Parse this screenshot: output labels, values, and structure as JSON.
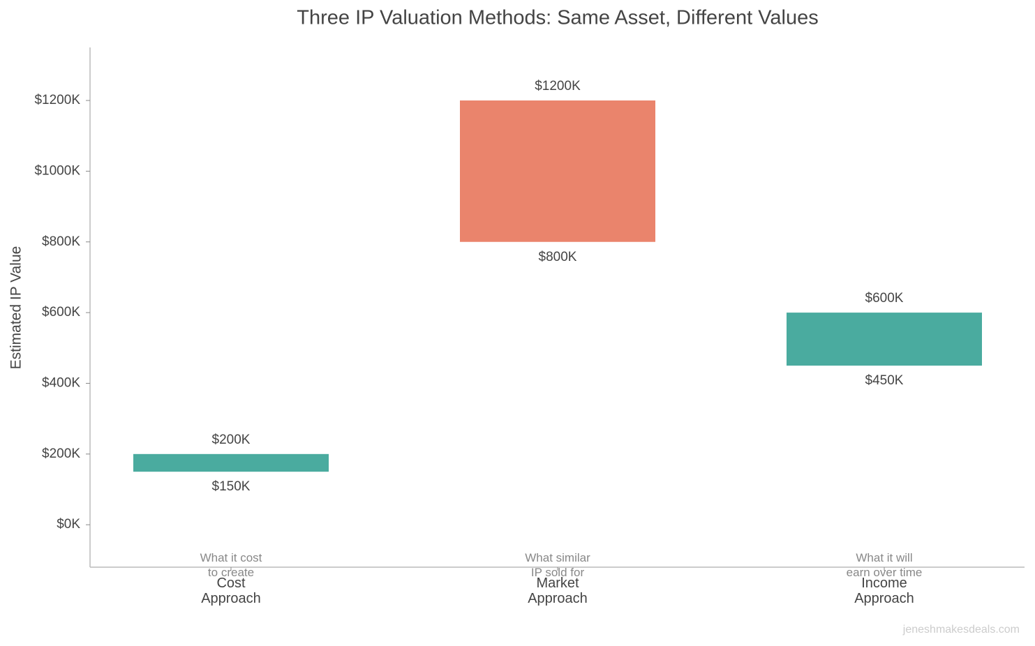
{
  "chart_data": {
    "type": "range_bar",
    "title": "Three IP Valuation Methods: Same Asset, Different Values",
    "y_label": "Estimated IP Value",
    "categories": [
      [
        "Cost",
        "Approach"
      ],
      [
        "Market",
        "Approach"
      ],
      [
        "Income",
        "Approach"
      ]
    ],
    "notes": [
      [
        "What it cost",
        "to create"
      ],
      [
        "What similar",
        "IP sold for"
      ],
      [
        "What it will",
        "earn over time"
      ]
    ],
    "values": [
      [
        150,
        200
      ],
      [
        800,
        1200
      ],
      [
        450,
        600
      ]
    ],
    "value_labels": [
      [
        "$150K",
        "$200K"
      ],
      [
        "$800K",
        "$1200K"
      ],
      [
        "$450K",
        "$600K"
      ]
    ],
    "colors": [
      "#4aab9f",
      "#ea846c",
      "#4aab9f"
    ],
    "ylim": [
      -120,
      1350
    ],
    "yticks": [
      {
        "value": 0,
        "label": "$0K"
      },
      {
        "value": 200,
        "label": "$200K"
      },
      {
        "value": 400,
        "label": "$400K"
      },
      {
        "value": 600,
        "label": "$600K"
      },
      {
        "value": 800,
        "label": "$800K"
      },
      {
        "value": 1000,
        "label": "$1000K"
      },
      {
        "value": 1200,
        "label": "$1200K"
      }
    ],
    "grid": false,
    "watermark": "jeneshmakesdeals.com"
  }
}
